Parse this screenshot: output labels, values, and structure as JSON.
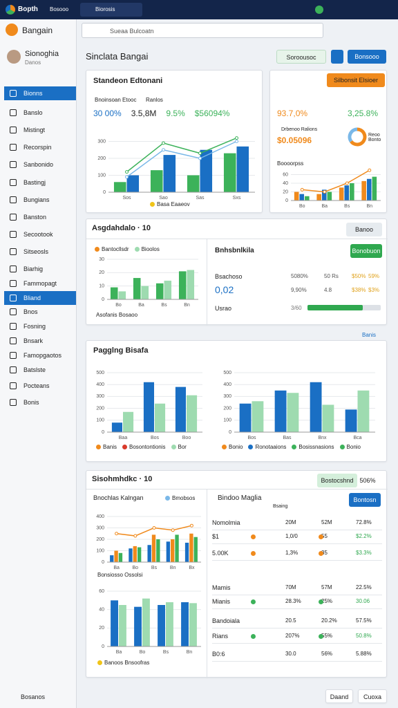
{
  "topbar": {
    "logo": "Bopth",
    "app": "Bosooo",
    "tab": "Biorosis"
  },
  "sidebar": {
    "title": "Bangain",
    "user": {
      "name": "Sionoghia",
      "role": "Danos"
    },
    "items": [
      "Bionns",
      "Banslo",
      "Mistingt",
      "Recorspin",
      "Sanbonido",
      "Bastingj",
      "Bungians",
      "Banston",
      "Secootook",
      "Sitseosls",
      "Biarhig",
      "Fammopagt",
      "Bliand",
      "Bnos",
      "Fosning",
      "Bnsark",
      "Famopgaotos",
      "Batslste",
      "Pocteans",
      "Bonis"
    ],
    "active": [
      0,
      12
    ],
    "footer": "Bosanos"
  },
  "search": "Sueaa Bulcoatn",
  "page_title": "Sinclata Bangai",
  "actions": [
    "Soroousoc",
    "Bonsooo"
  ],
  "panels": [
    {
      "title": "Standeon Edtonani",
      "subtitles": [
        "Bnoinsoan Etooc",
        "Ranlos"
      ],
      "stats": [
        {
          "text": "30 00%",
          "color": "#1a6fc4"
        },
        {
          "text": "3.5,8M",
          "color": "#222222"
        },
        {
          "text": "9.5%",
          "color": "#3cb25a"
        },
        {
          "text": "$56094%",
          "color": "#3cb25a"
        }
      ],
      "chart": {
        "ylim": [
          0,
          400
        ],
        "yticks": [
          0,
          100,
          200,
          300
        ],
        "categories": [
          "Sos",
          "Sao",
          "Sas",
          "Sxs"
        ],
        "series": [
          {
            "color": "#3cb25a",
            "values": [
              60,
              130,
              100,
              230
            ]
          },
          {
            "color": "#1a6fc4",
            "values": [
              100,
              220,
              250,
              270
            ]
          }
        ],
        "lines": [
          {
            "color": "#3cb25a",
            "values": [
              120,
              290,
              230,
              320
            ]
          },
          {
            "color": "#7ab8e8",
            "values": [
              90,
              250,
              200,
              300
            ]
          }
        ],
        "legend": [
          {
            "label": "Basa Eaaeov",
            "color": "#f0c419"
          }
        ]
      }
    },
    {
      "title": "Silbonsit Elsioer",
      "stats": [
        {
          "text": "93.7,0%",
          "color": "#f08a1c"
        },
        {
          "text": "3,25.8%",
          "color": "#3cb25a"
        }
      ],
      "legend_text": "Drbenoo Ralions",
      "amount": "$0.05096",
      "donut_label": "Reoo Bonto",
      "donut": {
        "values": [
          65,
          35
        ],
        "colors": [
          "#f08a1c",
          "#7ab8e8"
        ]
      },
      "chart": {
        "title": "Boooorpss",
        "ylim": [
          0,
          80
        ],
        "yticks": [
          0,
          20,
          40,
          60
        ],
        "categories": [
          "Bo",
          "Ba",
          "Bs",
          "Bn"
        ],
        "series": [
          {
            "color": "#f08a1c",
            "values": [
              20,
              15,
              30,
              45
            ]
          },
          {
            "color": "#1a6fc4",
            "values": [
              15,
              25,
              35,
              50
            ]
          },
          {
            "color": "#3cb25a",
            "values": [
              10,
              20,
              40,
              55
            ]
          }
        ],
        "lines": [
          {
            "color": "#f08a1c",
            "values": [
              25,
              20,
              40,
              70
            ]
          }
        ]
      }
    },
    {
      "title": "Asgdahdalo · 10",
      "button": "Banoo",
      "chart": {
        "ylim": [
          0,
          30
        ],
        "yticks": [
          0,
          10,
          20,
          30
        ],
        "categories": [
          "Bo",
          "Ba",
          "Bs",
          "Bn"
        ],
        "series": [
          {
            "color": "#3cb25a",
            "values": [
              9,
              16,
              12,
              21
            ]
          },
          {
            "color": "#9edbb0",
            "values": [
              6,
              10,
              14,
              22
            ]
          }
        ],
        "legend": [
          {
            "label": "Bantocllsdr",
            "color": "#f08a1c"
          },
          {
            "label": "Bioolos",
            "color": "#9edbb0"
          }
        ],
        "footer": "Asofanis Bosaoo"
      },
      "right_title": "Bnhsbnlkila",
      "right_button": "Bonobuon",
      "rows": [
        [
          "Bsachoso",
          "5080%",
          "50 Rs",
          "$50%",
          "59%"
        ],
        [
          "0,02",
          "9,90%",
          "4.8",
          "$38%",
          "$3%"
        ]
      ],
      "progress_label": "Usrao",
      "progress_value": "3/60",
      "progress": 75
    },
    {
      "title": "Pagglng Bisafa",
      "link": "Banis",
      "charts": [
        {
          "ylim": [
            0,
            500
          ],
          "yticks": [
            0,
            100,
            200,
            300,
            400,
            500
          ],
          "categories": [
            "Baa",
            "Bos",
            "Boo"
          ],
          "series": [
            {
              "color": "#1a6fc4",
              "values": [
                80,
                420,
                380
              ]
            },
            {
              "color": "#9edbb0",
              "values": [
                170,
                240,
                310
              ]
            }
          ],
          "legend": [
            {
              "label": "Banis",
              "color": "#f08a1c"
            },
            {
              "label": "Bosontontionis",
              "color": "#d93a2b"
            },
            {
              "label": "Bor",
              "color": "#9edbb0"
            }
          ]
        },
        {
          "ylim": [
            0,
            500
          ],
          "yticks": [
            0,
            100,
            200,
            300,
            400,
            500
          ],
          "categories": [
            "Bos",
            "Bas",
            "Bnx",
            "Bca"
          ],
          "series": [
            {
              "color": "#1a6fc4",
              "values": [
                240,
                350,
                420,
                190
              ]
            },
            {
              "color": "#9edbb0",
              "values": [
                260,
                330,
                230,
                350
              ]
            }
          ],
          "legend": [
            {
              "label": "Bonio",
              "color": "#f08a1c"
            },
            {
              "label": "Ronotaaions",
              "color": "#1a6fc4"
            },
            {
              "label": "Bosissnasions",
              "color": "#3cb25a"
            },
            {
              "label": "Bonio",
              "color": "#3cb25a"
            }
          ]
        }
      ]
    },
    {
      "title": "Sisohmhdkc · 10",
      "tabs": [
        "Bostocshnd",
        "506%"
      ],
      "charts": [
        {
          "title": "Bnochlas Kalngan",
          "ylim": [
            0,
            400
          ],
          "yticks": [
            0,
            100,
            200,
            300,
            400
          ],
          "categories": [
            "Ba",
            "Bo",
            "Bs",
            "Bn",
            "Bx"
          ],
          "series": [
            {
              "color": "#1a6fc4",
              "values": [
                60,
                120,
                150,
                180,
                170
              ]
            },
            {
              "color": "#f08a1c",
              "values": [
                100,
                140,
                240,
                200,
                250
              ]
            },
            {
              "color": "#3cb25a",
              "values": [
                80,
                130,
                200,
                240,
                220
              ]
            }
          ],
          "lines": [
            {
              "color": "#f08a1c",
              "values": [
                250,
                230,
                300,
                280,
                320
              ]
            }
          ],
          "legend": [
            {
              "label": "Bmobsos",
              "color": "#7ab8e8"
            }
          ],
          "footer": "Bonsiosso Ossolsi"
        },
        {
          "ylim": [
            0,
            60
          ],
          "yticks": [
            0,
            20,
            40,
            60
          ],
          "categories": [
            "Ba",
            "Bo",
            "Bs",
            "Bn"
          ],
          "series": [
            {
              "color": "#1a6fc4",
              "values": [
                50,
                43,
                45,
                48
              ]
            },
            {
              "color": "#9edbb0",
              "values": [
                45,
                52,
                48,
                47
              ]
            }
          ],
          "legend": [
            {
              "label": "Banoos Bnsoofras",
              "color": "#f0c419"
            }
          ]
        }
      ],
      "right_title": "Bindoo Maglia",
      "right_sub": "Bsaing",
      "right_button": "Bontosn",
      "rows": [
        {
          "cells": [
            "Nomolmia",
            "20M",
            "52M",
            "72.8%"
          ],
          "dot": null
        },
        {
          "cells": [
            "$1",
            "1,0/0",
            "55",
            "$2.2%"
          ],
          "dot": "#f08a1c"
        },
        {
          "cells": [
            "5.00K",
            "1,3%",
            "35",
            "$3.3%"
          ],
          "dot": "#f08a1c"
        },
        {
          "cells": [
            "Mamis",
            "70M",
            "57M",
            "22.5%"
          ],
          "dot": null
        },
        {
          "cells": [
            "Mianis",
            "28.3%",
            "25%",
            "30.06"
          ],
          "dot": "#3cb25a"
        },
        {
          "cells": [
            "Bandoiala",
            "20.5",
            "20.2%",
            "57.5%"
          ],
          "dot": null
        },
        {
          "cells": [
            "Rians",
            "207%",
            "55%",
            "50.8%"
          ],
          "dot": "#3cb25a"
        },
        {
          "cells": [
            "B0:6",
            "30.0",
            "56%",
            "5.88%"
          ],
          "dot": null
        }
      ]
    }
  ],
  "footer_buttons": [
    "Daand",
    "Cuoxa"
  ]
}
